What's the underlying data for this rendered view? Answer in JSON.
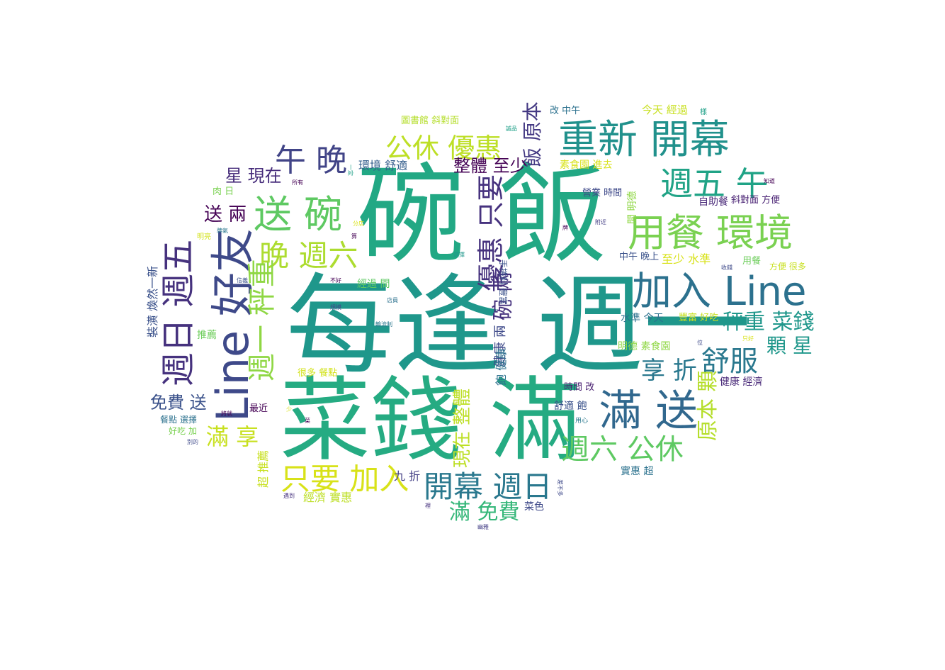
{
  "words": [
    {
      "text": "碗 飯",
      "color": "#22a884"
    },
    {
      "text": "每逢 週一",
      "color": "#1f978b"
    },
    {
      "text": "菜錢 滿",
      "color": "#25ab82"
    },
    {
      "text": "Line 好友",
      "color": "#3e4989"
    },
    {
      "text": "加入 Line",
      "color": "#2c718e"
    },
    {
      "text": "用餐 環境",
      "color": "#7ad151"
    },
    {
      "text": "重新 開幕",
      "color": "#21918c"
    },
    {
      "text": "滿 送",
      "color": "#31688e"
    },
    {
      "text": "送 碗",
      "color": "#5ec962"
    },
    {
      "text": "週日 週五",
      "color": "#46327e"
    },
    {
      "text": "午 晚",
      "color": "#414487"
    },
    {
      "text": "晚 週六",
      "color": "#addc30"
    },
    {
      "text": "週五 午",
      "color": "#20a386"
    },
    {
      "text": "公休 優惠",
      "color": "#bddf26"
    },
    {
      "text": "週一 秤重",
      "color": "#8fd744"
    },
    {
      "text": "優惠 只要",
      "color": "#46327e"
    },
    {
      "text": "只要 加入",
      "color": "#d8e219"
    },
    {
      "text": "開幕 週日",
      "color": "#2a788e"
    },
    {
      "text": "週六 公休",
      "color": "#5ec962"
    },
    {
      "text": "舒服",
      "color": "#2a788e"
    },
    {
      "text": "享 折",
      "color": "#2a788e"
    },
    {
      "text": "秤重 菜錢",
      "color": "#1f978b"
    },
    {
      "text": "顆 星",
      "color": "#1f978b"
    },
    {
      "text": "原本 顆",
      "color": "#b5de2b"
    },
    {
      "text": "滿 享",
      "color": "#c8e020"
    },
    {
      "text": "碗 兩",
      "color": "#46327e"
    },
    {
      "text": "飯 原本",
      "color": "#443983"
    },
    {
      "text": "整體 至少",
      "color": "#440154"
    },
    {
      "text": "現在 整體",
      "color": "#bddf26"
    },
    {
      "text": "滿 免費",
      "color": "#35b779"
    },
    {
      "text": "免費 送",
      "color": "#3b528b"
    },
    {
      "text": "星 現在",
      "color": "#472d7b"
    },
    {
      "text": "送 兩",
      "color": "#440154"
    },
    {
      "text": "健康 兩",
      "color": "#3e4989"
    },
    {
      "text": "飽 健康",
      "color": "#2c718e"
    },
    {
      "text": "裝潢 煥然一新",
      "color": "#3b528b"
    },
    {
      "text": "超 推薦",
      "color": "#c8e020"
    },
    {
      "text": "經濟 實惠",
      "color": "#bddf26"
    },
    {
      "text": "九 折",
      "color": "#433e85"
    },
    {
      "text": "菜色",
      "color": "#3e4989"
    },
    {
      "text": "環境 舒適",
      "color": "#355f8d"
    },
    {
      "text": "圖書館 斜對面",
      "color": "#b5de2b"
    },
    {
      "text": "改 中午",
      "color": "#2c718e"
    },
    {
      "text": "今天 經過",
      "color": "#c8e020"
    },
    {
      "text": "素食園 進去",
      "color": "#d8e219"
    },
    {
      "text": "營業 時間",
      "color": "#3e4989"
    },
    {
      "text": "自助餐",
      "color": "#482878"
    },
    {
      "text": "斜對面 方便",
      "color": "#482173"
    },
    {
      "text": "中午 晚上",
      "color": "#3b528b"
    },
    {
      "text": "至少 水準",
      "color": "#d8e219"
    },
    {
      "text": "用餐",
      "color": "#6ccd5a"
    },
    {
      "text": "方便 很多",
      "color": "#c8e020"
    },
    {
      "text": "水準 今天",
      "color": "#2c718e"
    },
    {
      "text": "豐富 好吃",
      "color": "#c8e020"
    },
    {
      "text": "明德 素食園",
      "color": "#8fd744"
    },
    {
      "text": "健康 經濟",
      "color": "#482878"
    },
    {
      "text": "時間 改",
      "color": "#481f70"
    },
    {
      "text": "舒適 飽",
      "color": "#3b528b"
    },
    {
      "text": "實惠 超",
      "color": "#2c728e"
    },
    {
      "text": "經過 間",
      "color": "#5ec962"
    },
    {
      "text": "間 明德",
      "color": "#8fd744"
    },
    {
      "text": "肉 日",
      "color": "#7ad151"
    },
    {
      "text": "推薦",
      "color": "#6ccd5a"
    },
    {
      "text": "最近",
      "color": "#440154"
    },
    {
      "text": "很多 餐點",
      "color": "#d2e21b"
    },
    {
      "text": "餐點 選擇",
      "color": "#2c718e"
    },
    {
      "text": "好吃 加",
      "color": "#7ad151"
    },
    {
      "text": "手捲料 豐富",
      "color": "#3b528b"
    },
    {
      "text": "明亮",
      "color": "#d2e21b"
    },
    {
      "text": "牌氣",
      "color": "#2a788e"
    },
    {
      "text": "信義",
      "color": "#3b528b"
    },
    {
      "text": "所有",
      "color": "#440154"
    },
    {
      "text": "一定",
      "color": "#1fa088"
    },
    {
      "text": "誠品",
      "color": "#1fa088"
    },
    {
      "text": "樣",
      "color": "#1fa088"
    },
    {
      "text": "知道",
      "color": "#440154"
    },
    {
      "text": "附近",
      "color": "#433e85"
    },
    {
      "text": "收錢",
      "color": "#3e4989"
    },
    {
      "text": "選擇",
      "color": "#1f978b"
    },
    {
      "text": "分店",
      "color": "#d8e219"
    },
    {
      "text": "不好",
      "color": "#440154"
    },
    {
      "text": "規模",
      "color": "#3e4989"
    },
    {
      "text": "店員",
      "color": "#2c718e"
    },
    {
      "text": "輪流制",
      "color": "#2a788e"
    },
    {
      "text": "只好",
      "color": "#d8e219"
    },
    {
      "text": "位",
      "color": "#3e4989"
    },
    {
      "text": "將就",
      "color": "#440154"
    },
    {
      "text": "少",
      "color": "#d8e219"
    },
    {
      "text": "別的",
      "color": "#3e4989"
    },
    {
      "text": "遇到",
      "color": "#46327e"
    },
    {
      "text": "算",
      "color": "#440154"
    },
    {
      "text": "幽雅",
      "color": "#433e85"
    },
    {
      "text": "裡",
      "color": "#46327e"
    },
    {
      "text": "用心",
      "color": "#2a788e"
    },
    {
      "text": "差不多",
      "color": "#3e4989"
    },
    {
      "text": "菜",
      "color": "#440154"
    },
    {
      "text": "牌",
      "color": "#440154"
    }
  ]
}
